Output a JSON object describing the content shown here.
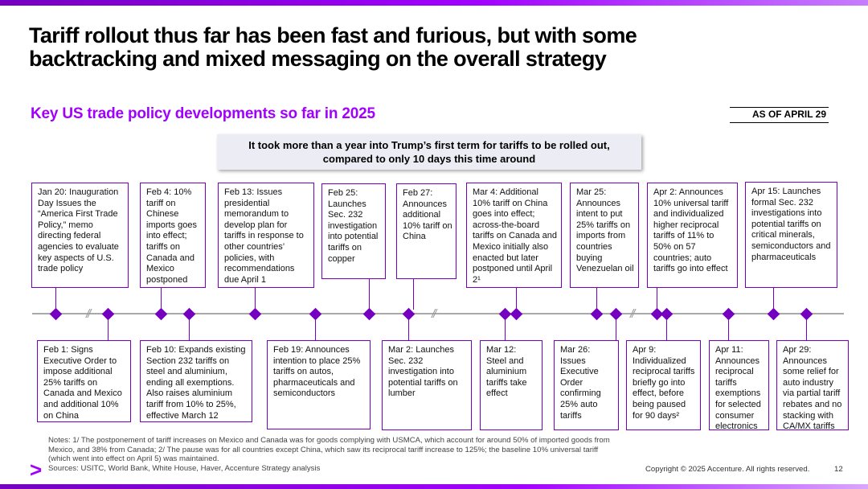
{
  "title": "Tariff rollout thus far has been fast and furious, but with some backtracking and mixed messaging on the overall strategy",
  "subtitle": "Key US trade policy developments so far in 2025",
  "as_of": "AS OF APRIL 29",
  "callout": {
    "line1": "It took more than a year into Trump’s first term for tariffs to be rolled out,",
    "line2": "compared to only 10 days this time around"
  },
  "top_events": [
    {
      "date": "Jan 20: Inauguration Day",
      "text": "Issues the “America First Trade Policy,” memo directing federal agencies to evaluate key aspects of U.S. trade policy"
    },
    {
      "date": "Feb 4:",
      "text": "10% tariff on Chinese imports goes into effect; tariffs on Canada and Mexico postponed"
    },
    {
      "date": "Feb 13:",
      "text": "Issues presidential memorandum to develop plan for tariffs in response to other countries’ policies, with recommendations due April 1"
    },
    {
      "date": "Feb 25:",
      "text": "Launches Sec. 232 investigation into potential tariffs on copper"
    },
    {
      "date": "Feb 27:",
      "text": "Announces additional 10% tariff on China"
    },
    {
      "date": "Mar 4:",
      "text": "Additional 10% tariff on China goes into effect; across-the-board tariffs on Canada and Mexico initially also enacted but later postponed until April 2¹"
    },
    {
      "date": "Mar 25:",
      "text": "Announces intent to put 25% tariffs on imports from countries buying Venezuelan oil"
    },
    {
      "date": "Apr 2:",
      "text": "Announces 10% universal tariff and individualized higher reciprocal tariffs of 11% to 50% on 57 countries; auto tariffs go into effect"
    },
    {
      "date": "Apr 15:",
      "text": "Launches formal Sec. 232 investigations into potential tariffs on critical minerals, semiconductors and pharmaceuticals"
    }
  ],
  "bottom_events": [
    {
      "date": "Feb 1:",
      "text": "Signs Executive Order to impose additional 25% tariffs on Canada and Mexico and additional 10% on China"
    },
    {
      "date": "Feb 10:",
      "text": "Expands existing Section 232 tariffs on steel and aluminium, ending all exemptions. Also raises aluminium tariff from 10% to 25%, effective March 12"
    },
    {
      "date": "Feb 19:",
      "text": "Announces intention to place 25% tariffs on autos, pharmaceuticals and semiconductors"
    },
    {
      "date": "Mar 2:",
      "text": "Launches Sec. 232 investigation into potential tariffs on lumber"
    },
    {
      "date": "Mar 12:",
      "text": "Steel and aluminium tariffs take effect"
    },
    {
      "date": "Mar 26:",
      "text": "Issues Executive Order confirming 25% auto tariffs"
    },
    {
      "date": "Apr 9:",
      "text": "Individualized reciprocal tariffs briefly go into effect, before being paused for 90 days²"
    },
    {
      "date": "Apr 11:",
      "text": "Announces reciprocal tariffs exemptions for selected consumer electronics"
    },
    {
      "date": "Apr 29:",
      "text": "Announces some relief for auto industry via partial tariff rebates and no stacking with CA/MX tariffs"
    }
  ],
  "timeline_breaks": [
    "//",
    "//",
    "//"
  ],
  "notes": {
    "line1": "Notes: 1/ The postponement of tariff increases on Mexico and Canada was for goods complying with USMCA, which account for around 50% of imported goods from",
    "line2": "Mexico, and 38% from Canada; 2/ The pause was for all countries except China, which saw its reciprocal tariff increase to 125%; the baseline 10% universal tariff",
    "line3": "(which went into effect on April 5) was maintained.",
    "line4": "Sources: USITC, World Bank, White House, Haver, Accenture Strategy analysis"
  },
  "logo_glyph": ">",
  "copyright": "Copyright © 2025 Accenture. All rights reserved.",
  "page_number": "12",
  "colors": {
    "accent": "#a100ff",
    "dark_purple": "#7500c0",
    "callout_bg": "#ececf4"
  }
}
